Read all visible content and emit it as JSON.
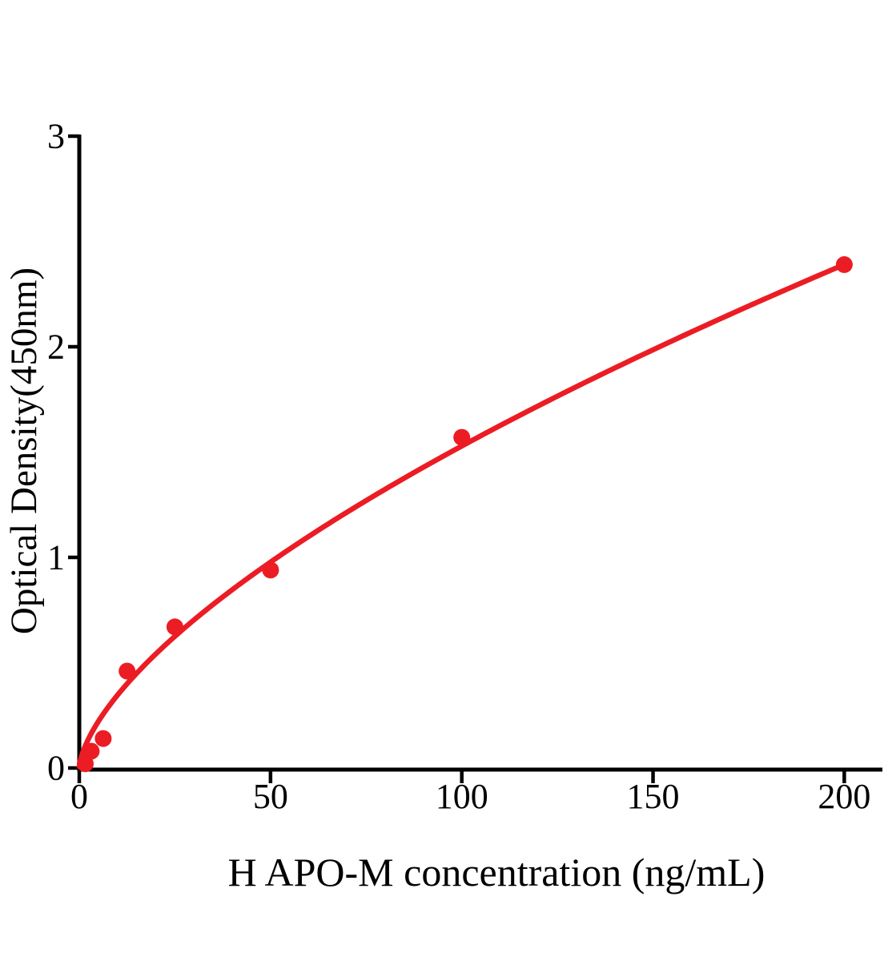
{
  "chart_data": {
    "type": "scatter",
    "title": "",
    "xlabel": "H APO-M concentration (ng/mL)",
    "ylabel": "Optical Density(450nm)",
    "xlim": [
      0,
      210
    ],
    "ylim": [
      0,
      3
    ],
    "xticks": [
      0,
      50,
      100,
      150,
      200
    ],
    "yticks": [
      0,
      1,
      2,
      3
    ],
    "grid": false,
    "legend": "none",
    "points": [
      {
        "x": 1.56,
        "y": 0.02
      },
      {
        "x": 3.12,
        "y": 0.08
      },
      {
        "x": 6.25,
        "y": 0.14
      },
      {
        "x": 12.5,
        "y": 0.46
      },
      {
        "x": 25,
        "y": 0.67
      },
      {
        "x": 50,
        "y": 0.94
      },
      {
        "x": 100,
        "y": 1.57
      },
      {
        "x": 200,
        "y": 2.39
      }
    ],
    "trendline": {
      "type": "power",
      "equation": "y = 0.0784 * x^0.645",
      "a": 0.0784,
      "b": 0.645,
      "x_start": 0.02,
      "x_end": 200
    },
    "colors": {
      "series": "#ec1c24",
      "axis": "#000000",
      "background": "#ffffff"
    }
  }
}
